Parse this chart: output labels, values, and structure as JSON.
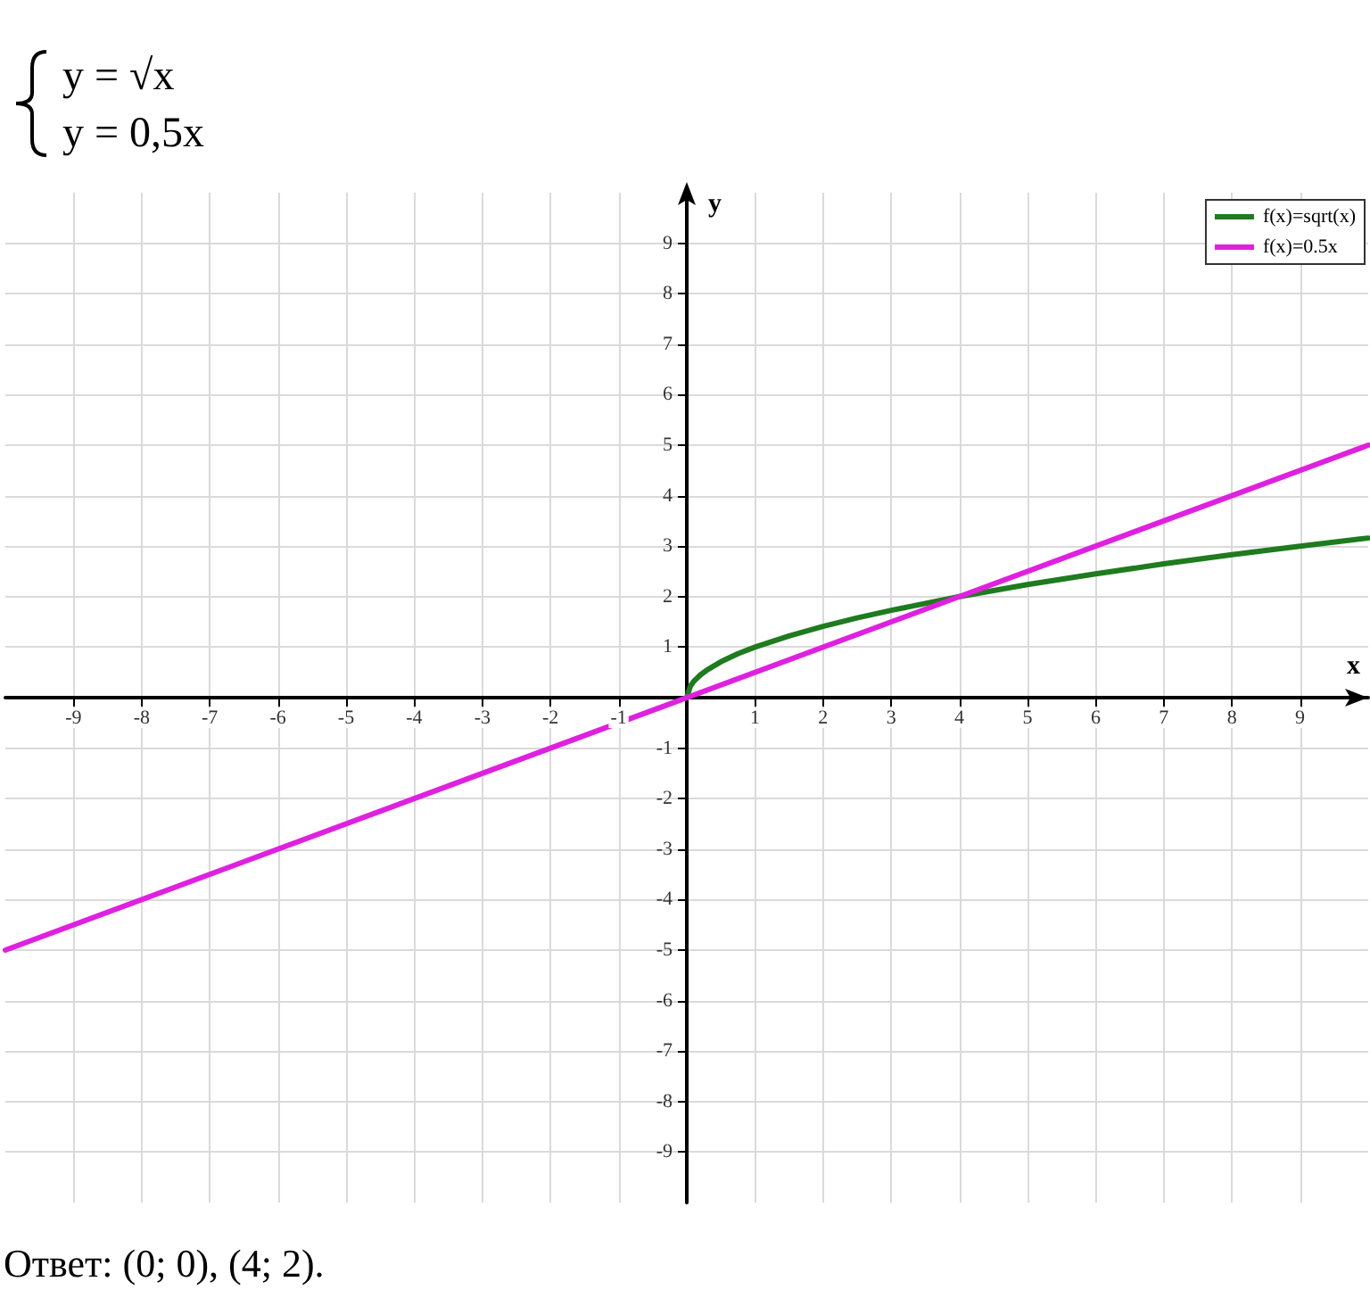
{
  "chart_data": {
    "type": "line",
    "title": "y = √x",
    "subtitle": "y = 0,5x",
    "xlabel": "x",
    "ylabel": "y",
    "xlim": [
      -10,
      10
    ],
    "ylim": [
      -10,
      10
    ],
    "xticks": [
      -9,
      -8,
      -7,
      -6,
      -5,
      -4,
      -3,
      -2,
      -1,
      1,
      2,
      3,
      4,
      5,
      6,
      7,
      8,
      9
    ],
    "yticks": [
      -9,
      -8,
      -7,
      -6,
      -5,
      -4,
      -3,
      -2,
      -1,
      1,
      2,
      3,
      4,
      5,
      6,
      7,
      8,
      9
    ],
    "grid": true,
    "legend": "top right",
    "series": [
      {
        "name": "f(x)=sqrt(x)",
        "color": "#1e7b1e",
        "x": [
          0,
          0.05,
          0.1,
          0.2,
          0.3,
          0.5,
          0.75,
          1,
          1.5,
          2,
          2.5,
          3,
          4,
          5,
          6,
          7,
          8,
          9,
          10
        ],
        "values": [
          0,
          0.22,
          0.32,
          0.45,
          0.55,
          0.71,
          0.87,
          1,
          1.22,
          1.41,
          1.58,
          1.73,
          2,
          2.24,
          2.45,
          2.65,
          2.83,
          3,
          3.16
        ]
      },
      {
        "name": "f(x)=0.5x",
        "color": "#e020e0",
        "x": [
          -10,
          0,
          4,
          10
        ],
        "values": [
          -5,
          0,
          2,
          5
        ]
      }
    ],
    "annotations": [
      "Ответ: (0; 0), (4; 2)."
    ]
  }
}
